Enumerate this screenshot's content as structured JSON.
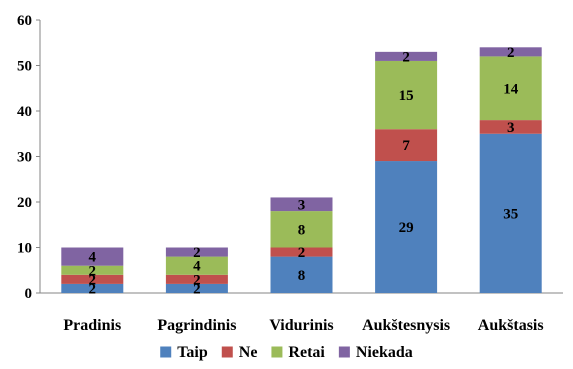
{
  "chart_data": {
    "type": "bar",
    "stacked": true,
    "categories": [
      "Pradinis",
      "Pagrindinis",
      "Vidurinis",
      "Aukštesnysis",
      "Aukštasis"
    ],
    "series": [
      {
        "name": "Taip",
        "color": "#4F81BD",
        "values": [
          2,
          2,
          8,
          29,
          35
        ]
      },
      {
        "name": "Ne",
        "color": "#C0504D",
        "values": [
          2,
          2,
          2,
          7,
          3
        ]
      },
      {
        "name": "Retai",
        "color": "#9BBB59",
        "values": [
          2,
          4,
          8,
          15,
          14
        ]
      },
      {
        "name": "Niekada",
        "color": "#8064A2",
        "values": [
          4,
          2,
          3,
          2,
          2
        ]
      }
    ],
    "ylim": [
      0,
      60
    ],
    "yticks": [
      0,
      10,
      20,
      30,
      40,
      50,
      60
    ],
    "legend_position": "bottom",
    "grid": false
  }
}
